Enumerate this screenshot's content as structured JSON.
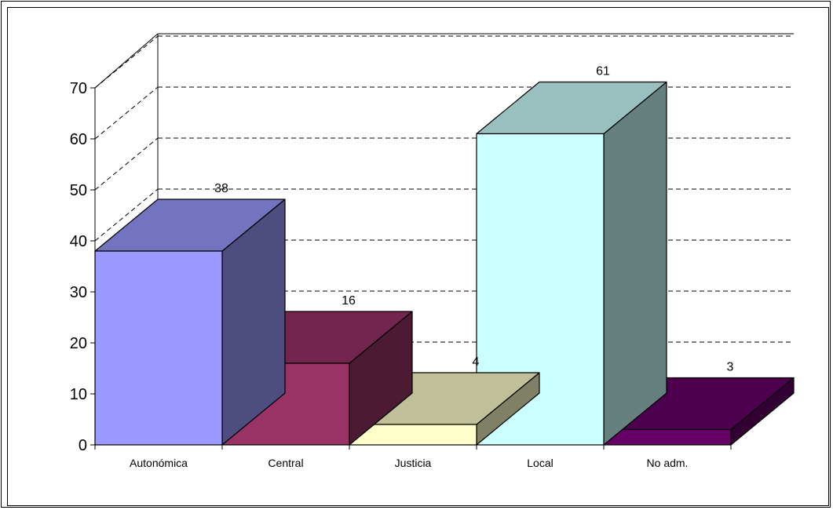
{
  "chart_data": {
    "type": "bar",
    "categories": [
      "Autonómica",
      "Central",
      "Justicia",
      "Local",
      "No adm."
    ],
    "values": [
      38,
      16,
      4,
      61,
      3
    ],
    "ylim": [
      0,
      70
    ],
    "yticks": [
      "0",
      "10",
      "20",
      "30",
      "40",
      "50",
      "60",
      "70"
    ],
    "grid": true,
    "title": "",
    "xlabel": "",
    "ylabel": "",
    "colors": {
      "front": [
        "#9999FF",
        "#993366",
        "#FFFFCC",
        "#CCFFFF",
        "#660066"
      ],
      "top": [
        "#7373BF",
        "#73264D",
        "#BFBF99",
        "#99BFBF",
        "#4D004D"
      ],
      "side": [
        "#4D4D80",
        "#4D1A33",
        "#808066",
        "#668080",
        "#330033"
      ]
    }
  }
}
